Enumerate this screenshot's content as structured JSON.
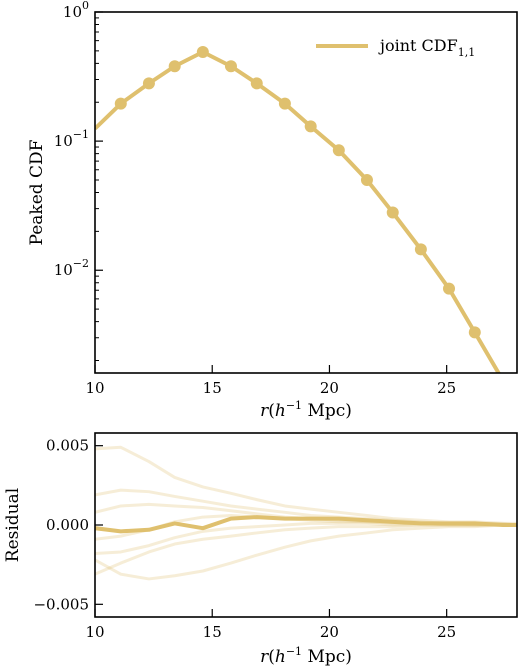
{
  "chart_data": [
    {
      "type": "line",
      "panel": "top",
      "ylabel": "Peaked CDF",
      "xlabel_parts": {
        "var": "r",
        "unit_base": "h",
        "unit_exp": "−1",
        "unit": "Mpc"
      },
      "yscale": "log",
      "xlim": [
        10,
        28
      ],
      "ylim": [
        0.0016,
        1.0
      ],
      "xticks": [
        10,
        15,
        20,
        25
      ],
      "yticks": [
        {
          "value": 1.0,
          "base": "10",
          "exp": "0"
        },
        {
          "value": 0.1,
          "base": "10",
          "exp": "−1"
        },
        {
          "value": 0.01,
          "base": "10",
          "exp": "−2"
        }
      ],
      "legend": {
        "text": "joint CDF",
        "subscript": "1,1",
        "position": "top-right"
      },
      "color": "#dfc06e",
      "series": [
        {
          "name": "joint CDF1,1",
          "x": [
            10.0,
            11.1,
            12.3,
            13.4,
            14.6,
            15.8,
            16.9,
            18.1,
            19.2,
            20.4,
            21.6,
            22.7,
            23.9,
            25.1,
            26.2,
            27.4
          ],
          "y": [
            0.125,
            0.195,
            0.28,
            0.38,
            0.49,
            0.38,
            0.28,
            0.195,
            0.13,
            0.085,
            0.05,
            0.028,
            0.0145,
            0.0072,
            0.0033,
            0.0014
          ],
          "markers": [
            false,
            true,
            true,
            true,
            true,
            true,
            true,
            true,
            true,
            true,
            true,
            true,
            true,
            true,
            true,
            false
          ]
        }
      ]
    },
    {
      "type": "line",
      "panel": "bottom",
      "ylabel": "Residual",
      "xlabel_parts": {
        "var": "r",
        "unit_base": "h",
        "unit_exp": "−1",
        "unit": "Mpc"
      },
      "xlim": [
        10,
        28
      ],
      "ylim": [
        -0.0058,
        0.0058
      ],
      "xticks": [
        10,
        15,
        20,
        25
      ],
      "yticks": [
        {
          "value": 0.005,
          "label": "0.005"
        },
        {
          "value": 0.0,
          "label": "0.000"
        },
        {
          "value": -0.005,
          "label": "−0.005"
        }
      ],
      "color": "#dfc06e",
      "x": [
        10.0,
        11.1,
        12.3,
        13.4,
        14.6,
        15.8,
        16.9,
        18.1,
        19.2,
        20.4,
        21.6,
        22.7,
        23.9,
        25.1,
        26.2,
        27.4,
        28.0
      ],
      "series": [
        {
          "role": "main",
          "values": [
            -0.0002,
            -0.0004,
            -0.0003,
            0.0001,
            -0.0002,
            0.0004,
            0.0005,
            0.0004,
            0.0004,
            0.0004,
            0.0003,
            0.0002,
            0.0001,
            0.0001,
            0.0001,
            0.0,
            0.0
          ]
        },
        {
          "role": "faint",
          "values": [
            0.0048,
            0.0049,
            0.004,
            0.003,
            0.0024,
            0.002,
            0.0016,
            0.0012,
            0.001,
            0.0008,
            0.0006,
            0.0004,
            0.0003,
            0.0002,
            0.0002,
            0.0001,
            0.0001
          ]
        },
        {
          "role": "faint",
          "values": [
            0.0019,
            0.0022,
            0.0021,
            0.0018,
            0.0015,
            0.0012,
            0.001,
            0.0008,
            0.0006,
            0.0005,
            0.0004,
            0.0003,
            0.0002,
            0.0001,
            0.0001,
            0.0001,
            0.0
          ]
        },
        {
          "role": "faint",
          "values": [
            0.0008,
            0.0012,
            0.0013,
            0.0012,
            0.0011,
            0.0009,
            0.0007,
            0.0005,
            0.0004,
            0.0003,
            0.0002,
            0.0002,
            0.0001,
            0.0001,
            0.0,
            0.0,
            0.0
          ]
        },
        {
          "role": "faint",
          "values": [
            -0.0009,
            -0.0007,
            -0.0003,
            0.0002,
            0.0005,
            0.0006,
            0.0005,
            0.0004,
            0.0003,
            0.0002,
            0.0002,
            0.0001,
            0.0001,
            0.0,
            0.0,
            0.0,
            0.0
          ]
        },
        {
          "role": "faint",
          "values": [
            -0.0018,
            -0.0017,
            -0.0013,
            -0.0008,
            -0.0004,
            -0.0002,
            -0.0001,
            0.0,
            0.0001,
            0.0001,
            0.0001,
            0.0,
            0.0,
            0.0,
            0.0,
            0.0,
            0.0
          ]
        },
        {
          "role": "faint",
          "values": [
            -0.0031,
            -0.0024,
            -0.0017,
            -0.0012,
            -0.0009,
            -0.0007,
            -0.0005,
            -0.0003,
            -0.0002,
            -0.0001,
            -0.0001,
            -0.0001,
            0.0,
            0.0,
            0.0,
            0.0,
            0.0
          ]
        },
        {
          "role": "faint",
          "values": [
            -0.0022,
            -0.0031,
            -0.0034,
            -0.0032,
            -0.0029,
            -0.0024,
            -0.0019,
            -0.0014,
            -0.001,
            -0.0007,
            -0.0005,
            -0.0003,
            -0.0002,
            -0.0001,
            -0.0001,
            0.0,
            0.0
          ]
        }
      ]
    }
  ]
}
